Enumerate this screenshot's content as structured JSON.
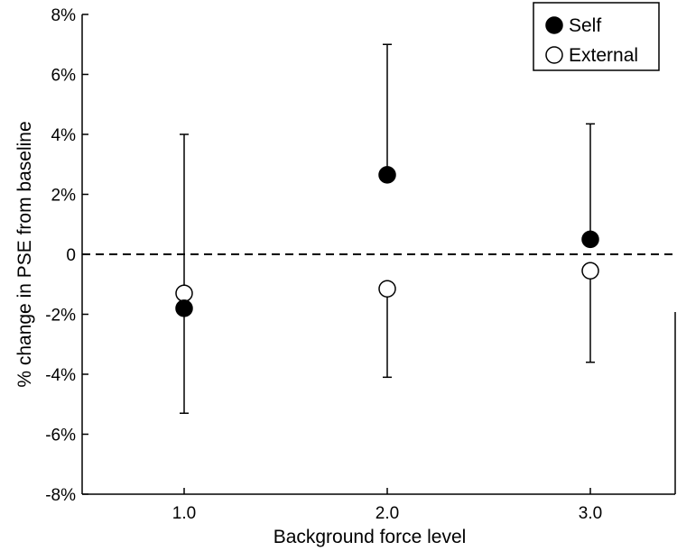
{
  "chart_data": {
    "type": "scatter",
    "title": "",
    "xlabel": "Background force level",
    "ylabel": "% change in PSE from baseline",
    "categories": [
      "1.0",
      "2.0",
      "3.0"
    ],
    "y_ticks": [
      "8%",
      "6%",
      "4%",
      "2%",
      "0",
      "-2%",
      "-4%",
      "-6%",
      "-8%"
    ],
    "ylim": [
      -8,
      8
    ],
    "reference_line": {
      "y": 0,
      "style": "dashed"
    },
    "grid": false,
    "legend_position": "top-right",
    "series": [
      {
        "name": "Self",
        "marker": "filled-circle",
        "color": "#000000",
        "values": [
          -1.8,
          2.65,
          0.5
        ],
        "error_upper": [
          null,
          7.0,
          4.35
        ],
        "error_lower": [
          -5.3,
          null,
          null
        ]
      },
      {
        "name": "External",
        "marker": "open-circle",
        "color": "#000000",
        "values": [
          -1.3,
          -1.15,
          -0.55
        ],
        "error_upper": [
          4.0,
          null,
          null
        ],
        "error_lower": [
          null,
          -4.1,
          -3.6
        ]
      }
    ]
  }
}
